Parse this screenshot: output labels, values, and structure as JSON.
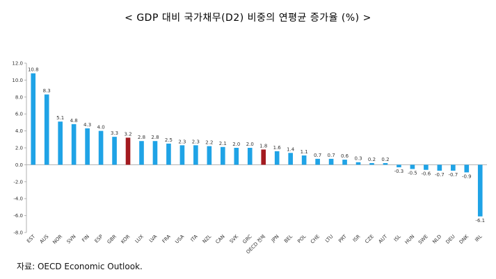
{
  "title": "< GDP 대비 국가채무(D2) 비중의 연평균 증가율 (%) >",
  "source": "자료: OECD Economic Outlook.",
  "colors": {
    "default": "#1fa3e6",
    "highlight": "#a31a1f",
    "axis": "#b0b0b0"
  },
  "chart_data": {
    "type": "bar",
    "title": "< GDP 대비 국가채무(D2) 비중의 연평균 증가율 (%) >",
    "xlabel": "",
    "ylabel": "",
    "ylim": [
      -8.0,
      12.0
    ],
    "yticks": [
      "12.0",
      "10.0",
      "8.0",
      "6.0",
      "4.0",
      "2.0",
      "0.0",
      "-2.0",
      "-4.0",
      "-6.0",
      "-8.0"
    ],
    "grid": false,
    "categories": [
      "EST",
      "AUS",
      "NOR",
      "SVN",
      "FIN",
      "ESP",
      "GBR",
      "KOR",
      "LUX",
      "LVA",
      "FRA",
      "USA",
      "ITA",
      "NZL",
      "CAN",
      "SVK",
      "GRC",
      "OECD 전체",
      "JPN",
      "BEL",
      "POL",
      "CHE",
      "LTU",
      "PRT",
      "ISR",
      "CZE",
      "AUT",
      "ISL",
      "HUN",
      "SWE",
      "NLD",
      "DEU",
      "DNK",
      "IRL"
    ],
    "values": [
      10.8,
      8.3,
      5.1,
      4.8,
      4.3,
      4.0,
      3.3,
      3.2,
      2.8,
      2.8,
      2.5,
      2.3,
      2.3,
      2.2,
      2.1,
      2.0,
      2.0,
      1.8,
      1.6,
      1.4,
      1.1,
      0.7,
      0.7,
      0.6,
      0.3,
      0.2,
      0.2,
      -0.3,
      -0.5,
      -0.6,
      -0.7,
      -0.7,
      -0.9,
      -6.1
    ],
    "labels": [
      "10.8",
      "8.3",
      "5.1",
      "4.8",
      "4.3",
      "4.0",
      "3.3",
      "3.2",
      "2.8",
      "2.8",
      "2.5",
      "2.3",
      "2.3",
      "2.2",
      "2.1",
      "2.0",
      "2.0",
      "1.8",
      "1.6",
      "1.4",
      "1.1",
      "0.7",
      "0.7",
      "0.6",
      "0.3",
      "0.2",
      "0.2",
      "-0.3",
      "-0.5",
      "-0.6",
      "-0.7",
      "-0.7",
      "-0.9",
      "-6.1"
    ],
    "highlighted": [
      "KOR",
      "OECD 전체"
    ]
  }
}
